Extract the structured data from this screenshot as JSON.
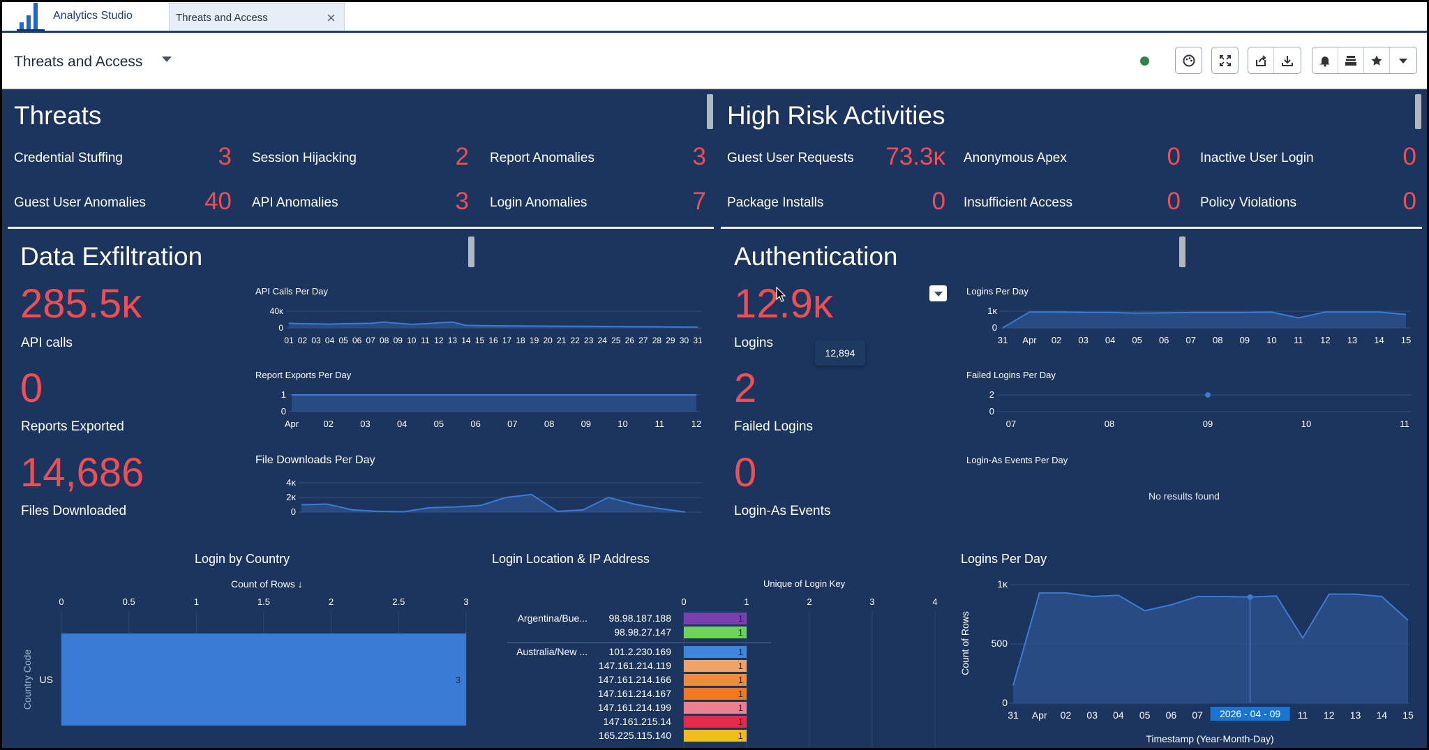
{
  "tabs": {
    "app_label": "Analytics Studio",
    "current_label": "Threats and Access",
    "close_glyph": "×"
  },
  "header": {
    "title": "Threats and Access",
    "status_color": "#2e844a"
  },
  "toolbar": {
    "icons": [
      "palette-icon",
      "expand-icon",
      "share-icon",
      "download-icon",
      "bell-icon",
      "inbox-icon",
      "star-icon",
      "chevron-down-icon"
    ]
  },
  "threats": {
    "title": "Threats",
    "items": [
      {
        "label": "Credential Stuffing",
        "value": "3"
      },
      {
        "label": "Session Hijacking",
        "value": "2"
      },
      {
        "label": "Report Anomalies",
        "value": "3"
      },
      {
        "label": "Guest User Anomalies",
        "value": "40"
      },
      {
        "label": "API Anomalies",
        "value": "3"
      },
      {
        "label": "Login Anomalies",
        "value": "7"
      }
    ]
  },
  "high_risk": {
    "title": "High Risk Activities",
    "items": [
      {
        "label": "Guest User Requests",
        "value": "73.3ĸ"
      },
      {
        "label": "Anonymous Apex",
        "value": "0"
      },
      {
        "label": "Inactive User Login",
        "value": "0"
      },
      {
        "label": "Package Installs",
        "value": "0"
      },
      {
        "label": "Insufficient Access",
        "value": "0"
      },
      {
        "label": "Policy Violations",
        "value": "0"
      }
    ]
  },
  "exfil": {
    "title": "Data Exfiltration",
    "kpis": [
      {
        "value": "285.5ĸ",
        "label": "API calls"
      },
      {
        "value": "0",
        "label": "Reports Exported"
      },
      {
        "value": "14,686",
        "label": "Files Downloaded"
      }
    ]
  },
  "auth": {
    "title": "Authentication",
    "kpis": [
      {
        "value": "12.9ĸ",
        "label": "Logins"
      },
      {
        "value": "2",
        "label": "Failed Logins"
      },
      {
        "value": "0",
        "label": "Login-As Events"
      }
    ],
    "tooltip": "12,894",
    "no_results": "No results found"
  },
  "location": {
    "title": "Login Location & IP Address",
    "rows": [
      {
        "country": "Argentina/Bue...",
        "ip": "98.98.187.188",
        "value": "1",
        "color": "#7a3fb1"
      },
      {
        "country": "",
        "ip": "98.98.27.147",
        "value": "1",
        "color": "#6fd35a"
      },
      {
        "country": "Australia/New ...",
        "ip": "101.2.230.169",
        "value": "1",
        "color": "#3f86df"
      },
      {
        "country": "",
        "ip": "147.161.214.119",
        "value": "1",
        "color": "#f0a363"
      },
      {
        "country": "",
        "ip": "147.161.214.166",
        "value": "1",
        "color": "#f08b3b"
      },
      {
        "country": "",
        "ip": "147.161.214.167",
        "value": "1",
        "color": "#f07a1d"
      },
      {
        "country": "",
        "ip": "147.161.214.199",
        "value": "1",
        "color": "#ee7f90"
      },
      {
        "country": "",
        "ip": "147.161.215.14",
        "value": "1",
        "color": "#e42b49"
      },
      {
        "country": "",
        "ip": "165.225.115.140",
        "value": "1",
        "color": "#f1bd1e"
      }
    ]
  },
  "chart_data": [
    {
      "id": "api-calls-per-day",
      "type": "area",
      "title": "API Calls Per Day",
      "x": [
        "01",
        "02",
        "03",
        "04",
        "05",
        "06",
        "07",
        "08",
        "09",
        "10",
        "11",
        "12",
        "13",
        "14",
        "15",
        "16",
        "17",
        "18",
        "19",
        "20",
        "21",
        "22",
        "23",
        "24",
        "25",
        "26",
        "27",
        "28",
        "29",
        "30",
        "31"
      ],
      "values": [
        11000,
        10000,
        9500,
        9000,
        10000,
        10500,
        11000,
        14000,
        11000,
        8500,
        10000,
        12000,
        14000,
        6000,
        5500,
        5000,
        4800,
        4600,
        4400,
        4200,
        4000,
        3800,
        3600,
        3400,
        3200,
        3000,
        2800,
        2600,
        2400,
        2200,
        2000
      ],
      "yticks": [
        "40ĸ",
        "0"
      ],
      "ylim": [
        0,
        40000
      ],
      "color": "#3a7bd5"
    },
    {
      "id": "report-exports-per-day",
      "type": "area",
      "title": "Report Exports Per Day",
      "x": [
        "Apr",
        "02",
        "03",
        "04",
        "05",
        "06",
        "07",
        "08",
        "09",
        "10",
        "11",
        "12"
      ],
      "values": [
        1,
        1,
        1,
        1,
        1,
        1,
        1,
        1,
        1,
        1,
        1,
        1
      ],
      "yticks": [
        "1",
        "0"
      ],
      "ylim": [
        0,
        1
      ],
      "color": "#3a7bd5"
    },
    {
      "id": "file-downloads-per-day",
      "type": "area",
      "title": "File Downloads Per Day",
      "values": [
        1000,
        1100,
        300,
        100,
        50,
        600,
        700,
        900,
        2000,
        2400,
        100,
        300,
        2000,
        1100,
        500,
        0
      ],
      "yticks": [
        "4ĸ",
        "2ĸ",
        "0"
      ],
      "ylim": [
        0,
        4000
      ],
      "color": "#3a7bd5"
    },
    {
      "id": "logins-per-day-small",
      "type": "area",
      "title": "Logins Per Day",
      "x": [
        "31",
        "Apr",
        "02",
        "03",
        "04",
        "05",
        "06",
        "07",
        "08",
        "09",
        "10",
        "11",
        "12",
        "13",
        "14",
        "15"
      ],
      "values": [
        0,
        950,
        950,
        930,
        930,
        880,
        900,
        920,
        920,
        920,
        940,
        600,
        950,
        950,
        950,
        800
      ],
      "yticks": [
        "1ĸ",
        "0"
      ],
      "ylim": [
        0,
        1000
      ],
      "color": "#3a7bd5"
    },
    {
      "id": "failed-logins-per-day",
      "type": "scatter",
      "title": "Failed Logins Per Day",
      "x": [
        "07",
        "08",
        "09",
        "10",
        "11"
      ],
      "points": [
        {
          "x": "09",
          "y": 2
        }
      ],
      "yticks": [
        "2",
        "0"
      ],
      "ylim": [
        0,
        2
      ],
      "color": "#3a7bd5"
    },
    {
      "id": "login-as-events-per-day",
      "type": "line",
      "title": "Login-As Events Per Day",
      "values": []
    },
    {
      "id": "login-by-country",
      "type": "bar",
      "title": "Login by Country",
      "subtitle": "Count of Rows ↓",
      "ylabel": "Country Code",
      "categories": [
        "US"
      ],
      "values": [
        3
      ],
      "xticks": [
        "0",
        "0.5",
        "1",
        "1.5",
        "2",
        "2.5",
        "3"
      ],
      "xlim": [
        0,
        3
      ],
      "color": "#3a7bd5"
    },
    {
      "id": "unique-login-key",
      "type": "bar",
      "title": "Unique of Login Key",
      "xticks": [
        "0",
        "1",
        "2",
        "3",
        "4"
      ],
      "xlim": [
        0,
        4
      ],
      "values": [
        1,
        1,
        1,
        1,
        1,
        1,
        1,
        1,
        1
      ]
    },
    {
      "id": "logins-per-day-large",
      "type": "area",
      "title": "Logins Per Day",
      "xlabel": "Timestamp (Year-Month-Day)",
      "ylabel": "Count of Rows",
      "x": [
        "31",
        "Apr",
        "02",
        "03",
        "04",
        "05",
        "06",
        "07",
        "08",
        "09",
        "10",
        "11",
        "12",
        "13",
        "14",
        "15"
      ],
      "values": [
        150,
        930,
        930,
        900,
        910,
        780,
        830,
        900,
        900,
        895,
        905,
        550,
        920,
        920,
        900,
        700
      ],
      "yticks": [
        "1ĸ",
        "500",
        "0"
      ],
      "ylim": [
        0,
        1000
      ],
      "highlight_label": "2026 - 04 - 09",
      "color": "#3a7bd5"
    }
  ]
}
